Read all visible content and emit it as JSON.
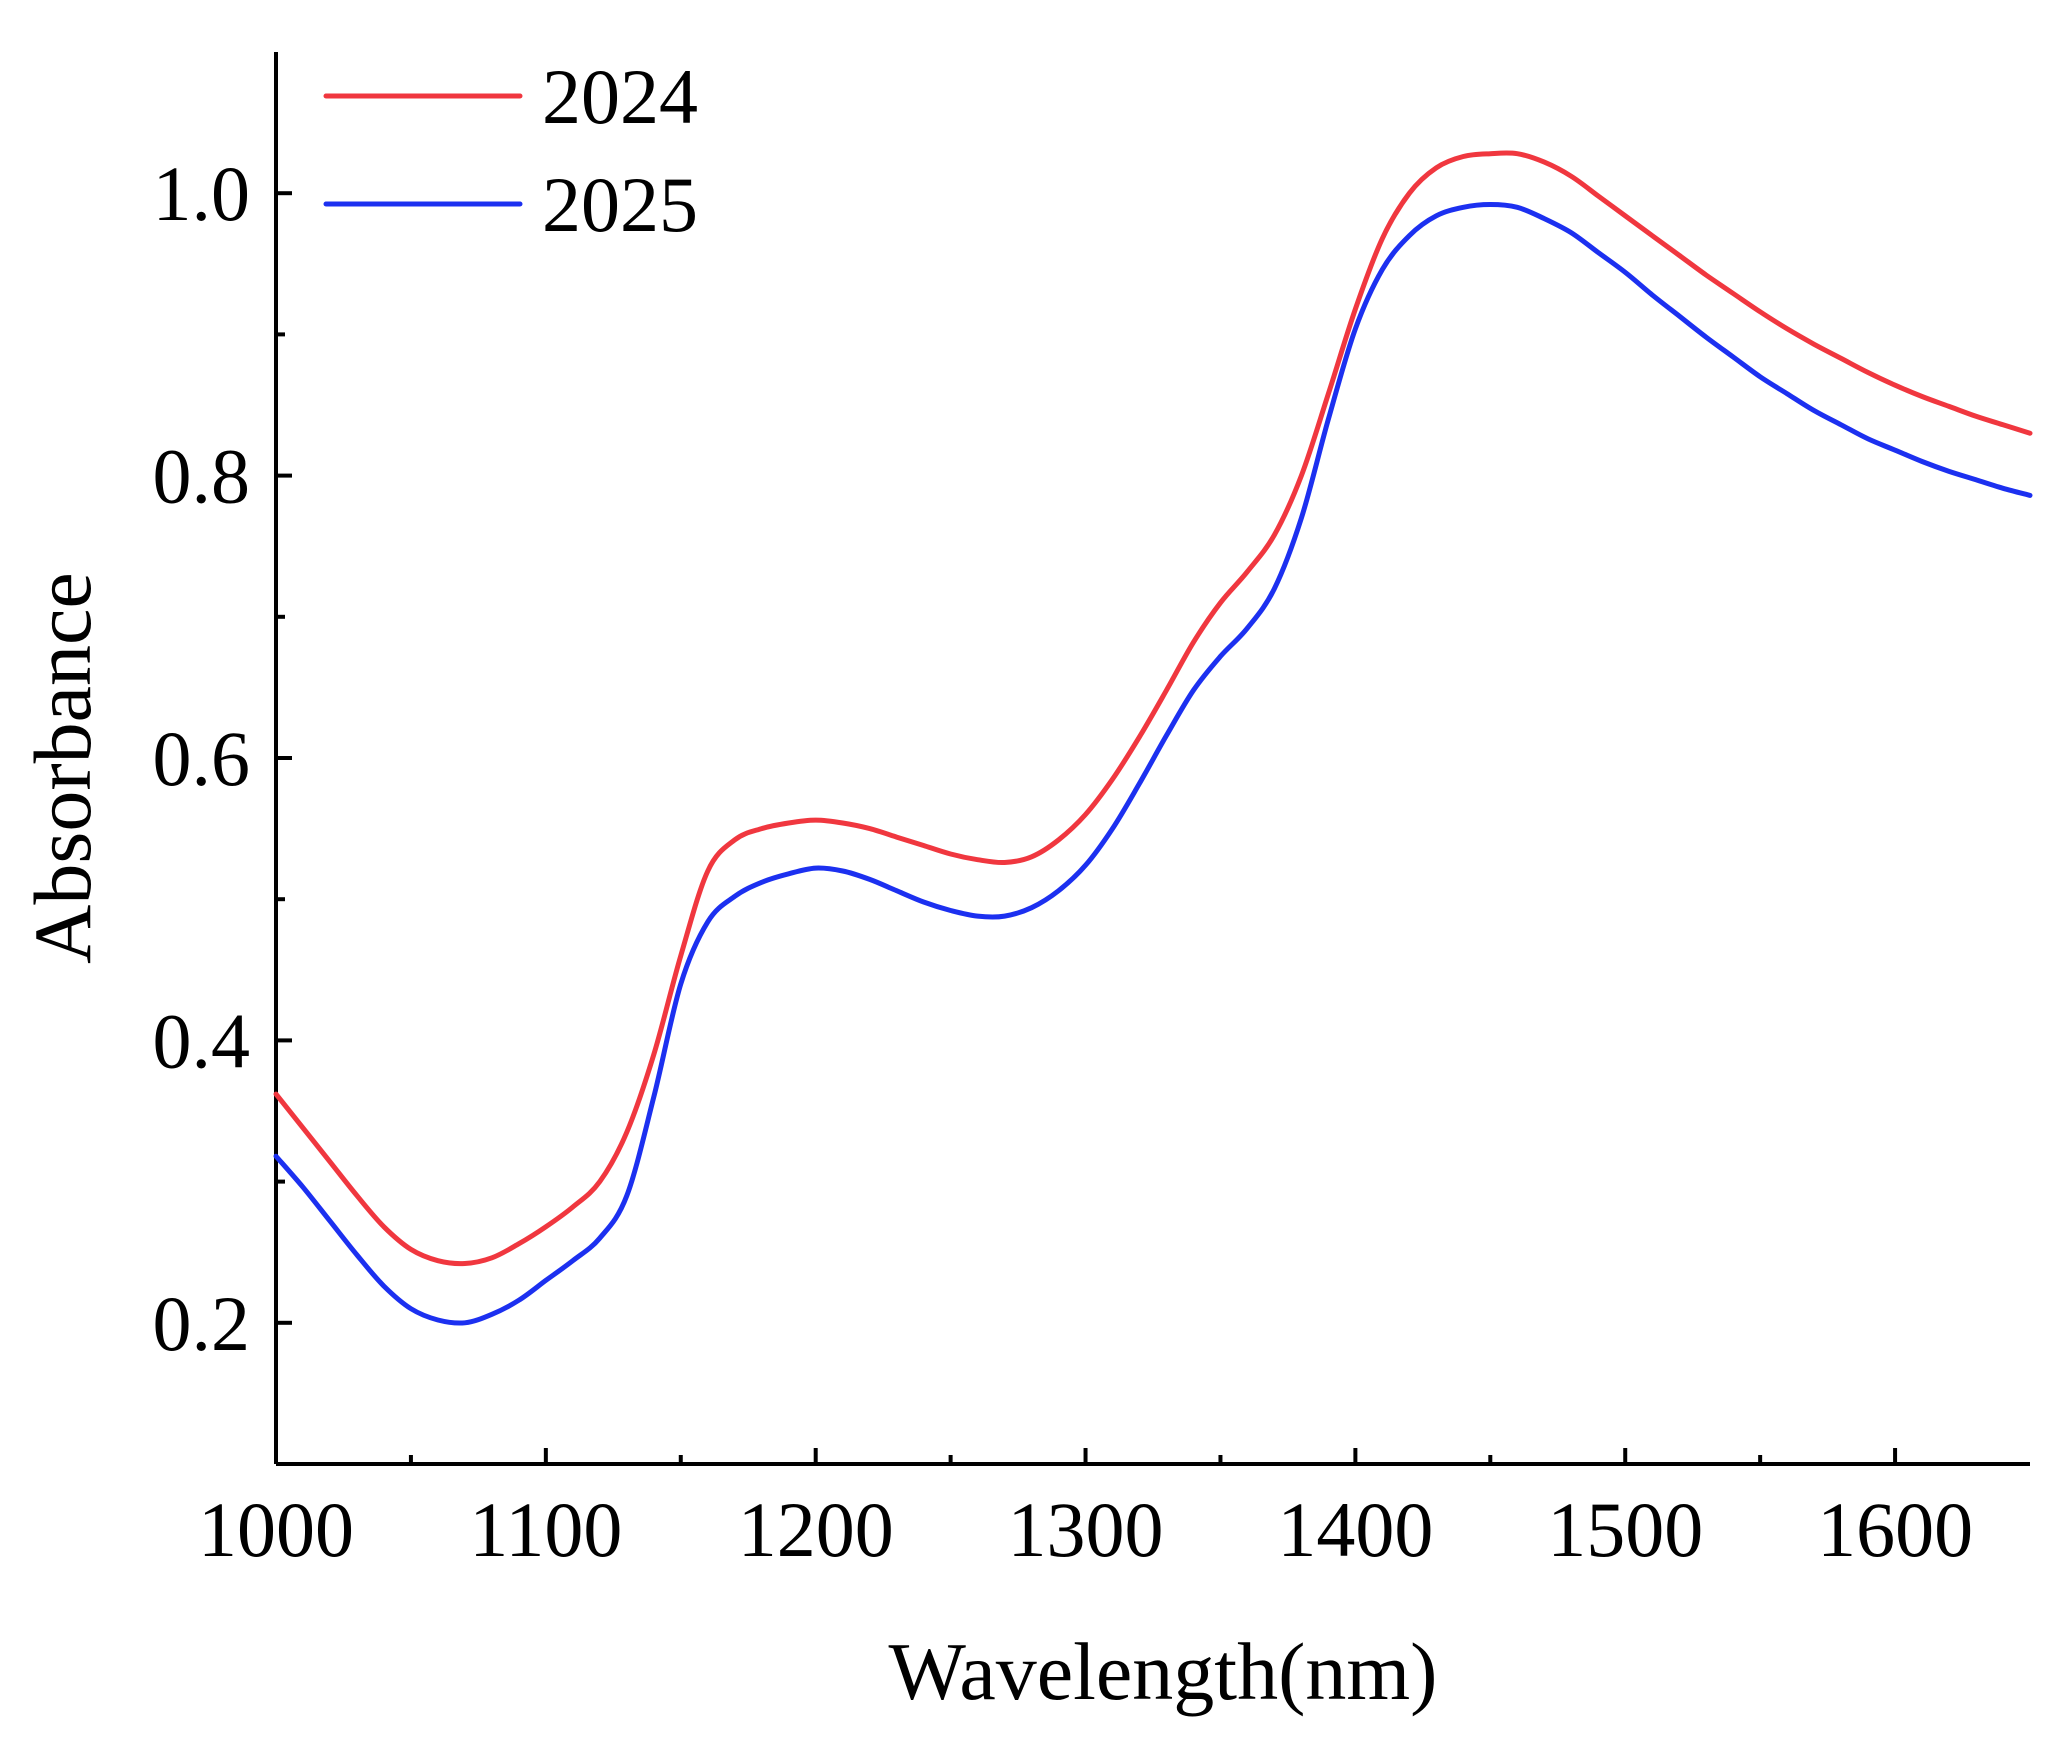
{
  "chart_data": {
    "type": "line",
    "title": "",
    "xlabel": "Wavelength(nm)",
    "ylabel": "Absorbance",
    "xlim": [
      1000,
      1650
    ],
    "ylim": [
      0.1,
      1.1
    ],
    "x_ticks": [
      1000,
      1100,
      1200,
      1300,
      1400,
      1500,
      1600
    ],
    "x_tick_labels": [
      "1000",
      "1100",
      "1200",
      "1300",
      "1400",
      "1500",
      "1600"
    ],
    "x_minor_ticks": [
      1050,
      1150,
      1250,
      1350,
      1450,
      1550
    ],
    "y_ticks": [
      0.2,
      0.4,
      0.6,
      0.8,
      1.0
    ],
    "y_tick_labels": [
      "0.2",
      "0.4",
      "0.6",
      "0.8",
      "1.0"
    ],
    "y_minor_ticks": [
      0.3,
      0.5,
      0.7,
      0.9
    ],
    "grid": false,
    "legend_position": "top-left",
    "series": [
      {
        "name": "2024",
        "color": "#f0373f",
        "x": [
          1000,
          1010,
          1020,
          1030,
          1040,
          1050,
          1060,
          1070,
          1080,
          1090,
          1100,
          1110,
          1120,
          1130,
          1140,
          1150,
          1160,
          1170,
          1180,
          1190,
          1200,
          1210,
          1220,
          1230,
          1240,
          1250,
          1260,
          1270,
          1280,
          1290,
          1300,
          1310,
          1320,
          1330,
          1340,
          1350,
          1360,
          1370,
          1380,
          1390,
          1400,
          1410,
          1420,
          1430,
          1440,
          1450,
          1460,
          1470,
          1480,
          1490,
          1500,
          1510,
          1520,
          1530,
          1540,
          1550,
          1560,
          1570,
          1580,
          1590,
          1600,
          1610,
          1620,
          1630,
          1640,
          1650
        ],
        "values": [
          0.362,
          0.338,
          0.314,
          0.29,
          0.268,
          0.252,
          0.244,
          0.242,
          0.246,
          0.256,
          0.268,
          0.282,
          0.3,
          0.335,
          0.39,
          0.46,
          0.52,
          0.542,
          0.55,
          0.554,
          0.556,
          0.554,
          0.55,
          0.544,
          0.538,
          0.532,
          0.528,
          0.526,
          0.53,
          0.542,
          0.56,
          0.585,
          0.615,
          0.648,
          0.682,
          0.71,
          0.732,
          0.758,
          0.8,
          0.858,
          0.918,
          0.968,
          1.0,
          1.018,
          1.026,
          1.028,
          1.028,
          1.022,
          1.012,
          0.998,
          0.984,
          0.97,
          0.956,
          0.942,
          0.929,
          0.916,
          0.904,
          0.893,
          0.883,
          0.873,
          0.864,
          0.856,
          0.849,
          0.842,
          0.836,
          0.83
        ]
      },
      {
        "name": "2025",
        "color": "#1c30f0",
        "x": [
          1000,
          1010,
          1020,
          1030,
          1040,
          1050,
          1060,
          1070,
          1080,
          1090,
          1100,
          1110,
          1120,
          1130,
          1140,
          1150,
          1160,
          1170,
          1180,
          1190,
          1200,
          1210,
          1220,
          1230,
          1240,
          1250,
          1260,
          1270,
          1280,
          1290,
          1300,
          1310,
          1320,
          1330,
          1340,
          1350,
          1360,
          1370,
          1380,
          1390,
          1400,
          1410,
          1420,
          1430,
          1440,
          1450,
          1460,
          1470,
          1480,
          1490,
          1500,
          1510,
          1520,
          1530,
          1540,
          1550,
          1560,
          1570,
          1580,
          1590,
          1600,
          1610,
          1620,
          1630,
          1640,
          1650
        ],
        "values": [
          0.318,
          0.296,
          0.272,
          0.248,
          0.226,
          0.21,
          0.202,
          0.2,
          0.206,
          0.216,
          0.23,
          0.244,
          0.26,
          0.29,
          0.36,
          0.44,
          0.484,
          0.502,
          0.512,
          0.518,
          0.522,
          0.52,
          0.514,
          0.506,
          0.498,
          0.492,
          0.488,
          0.488,
          0.494,
          0.506,
          0.524,
          0.55,
          0.582,
          0.616,
          0.648,
          0.672,
          0.692,
          0.72,
          0.77,
          0.84,
          0.904,
          0.946,
          0.97,
          0.984,
          0.99,
          0.992,
          0.99,
          0.982,
          0.972,
          0.958,
          0.944,
          0.928,
          0.913,
          0.898,
          0.884,
          0.87,
          0.858,
          0.846,
          0.836,
          0.826,
          0.818,
          0.81,
          0.803,
          0.797,
          0.791,
          0.786
        ]
      }
    ]
  }
}
